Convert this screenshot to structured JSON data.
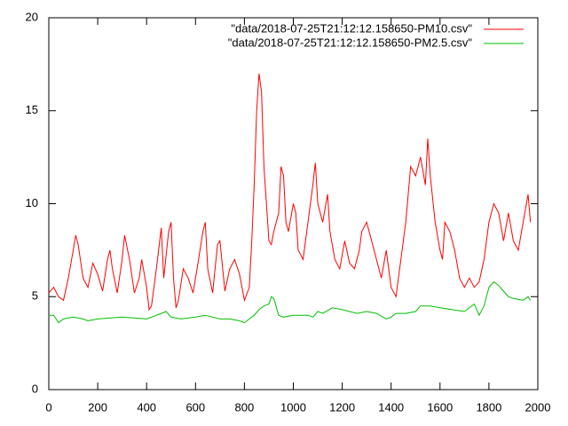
{
  "chart_data": {
    "type": "line",
    "xlim": [
      0,
      2000
    ],
    "xticks": [
      0,
      200,
      400,
      600,
      800,
      1000,
      1200,
      1400,
      1600,
      1800,
      2000
    ],
    "ylim": [
      0,
      20
    ],
    "yticks": [
      0,
      5,
      10,
      15,
      20
    ],
    "grid": false,
    "legend": "top-right",
    "series": [
      {
        "name": "\"data/2018-07-25T21:12:12.158650-PM10.csv\"",
        "color": "#ff0000",
        "x": [
          0,
          20,
          40,
          60,
          80,
          100,
          110,
          120,
          140,
          160,
          180,
          200,
          220,
          240,
          250,
          260,
          280,
          300,
          310,
          330,
          350,
          370,
          380,
          400,
          410,
          420,
          440,
          460,
          470,
          490,
          500,
          510,
          520,
          530,
          550,
          570,
          590,
          610,
          630,
          640,
          650,
          670,
          690,
          700,
          720,
          740,
          760,
          780,
          800,
          820,
          830,
          840,
          850,
          860,
          870,
          880,
          890,
          900,
          910,
          920,
          940,
          950,
          960,
          970,
          980,
          1000,
          1010,
          1020,
          1040,
          1060,
          1080,
          1090,
          1100,
          1120,
          1140,
          1150,
          1170,
          1190,
          1210,
          1230,
          1250,
          1270,
          1280,
          1300,
          1320,
          1340,
          1360,
          1380,
          1400,
          1420,
          1440,
          1460,
          1480,
          1500,
          1520,
          1540,
          1550,
          1560,
          1580,
          1600,
          1610,
          1620,
          1640,
          1660,
          1680,
          1700,
          1720,
          1740,
          1760,
          1780,
          1800,
          1820,
          1840,
          1860,
          1880,
          1900,
          1920,
          1940,
          1960,
          1970
        ],
        "values": [
          5.2,
          5.5,
          5.0,
          4.8,
          6.0,
          7.5,
          8.3,
          7.8,
          6.0,
          5.5,
          6.8,
          6.2,
          5.3,
          7.0,
          7.5,
          6.5,
          5.2,
          7.0,
          8.3,
          7.0,
          5.2,
          6.0,
          7.0,
          5.5,
          4.3,
          4.5,
          6.5,
          8.7,
          6.0,
          8.5,
          9.0,
          6.0,
          4.4,
          4.8,
          6.5,
          6.0,
          5.2,
          6.8,
          8.5,
          9.0,
          6.5,
          5.2,
          7.8,
          8.0,
          5.3,
          6.5,
          7.0,
          6.2,
          4.8,
          5.5,
          8.0,
          11.0,
          15.0,
          17.0,
          16.0,
          12.0,
          10.0,
          8.0,
          7.8,
          8.5,
          9.5,
          12.0,
          11.5,
          9.0,
          8.5,
          10.0,
          9.5,
          7.5,
          7.0,
          9.0,
          11.0,
          12.2,
          10.0,
          9.0,
          10.5,
          8.5,
          7.0,
          6.5,
          8.0,
          6.8,
          6.5,
          7.5,
          8.5,
          9.0,
          8.0,
          7.0,
          6.0,
          7.5,
          5.5,
          5.0,
          7.0,
          9.0,
          12.0,
          11.5,
          12.5,
          11.0,
          13.5,
          11.5,
          9.0,
          7.5,
          7.0,
          9.0,
          8.5,
          7.5,
          6.0,
          5.5,
          6.0,
          5.5,
          5.8,
          7.0,
          9.0,
          10.0,
          9.5,
          8.0,
          9.5,
          8.0,
          7.5,
          9.0,
          10.5,
          9.0
        ]
      },
      {
        "name": "\"data/2018-07-25T21:12:12.158650-PM2.5.csv\"",
        "color": "#00c000",
        "x": [
          0,
          20,
          40,
          60,
          100,
          140,
          160,
          200,
          300,
          400,
          420,
          460,
          480,
          500,
          540,
          600,
          640,
          700,
          740,
          780,
          800,
          820,
          840,
          860,
          880,
          900,
          910,
          920,
          940,
          960,
          1000,
          1060,
          1080,
          1100,
          1120,
          1160,
          1200,
          1260,
          1300,
          1340,
          1380,
          1400,
          1420,
          1460,
          1500,
          1520,
          1560,
          1600,
          1650,
          1700,
          1740,
          1760,
          1780,
          1800,
          1820,
          1840,
          1860,
          1880,
          1900,
          1940,
          1960,
          1970
        ],
        "values": [
          4.0,
          4.0,
          3.6,
          3.8,
          3.9,
          3.8,
          3.7,
          3.8,
          3.9,
          3.8,
          3.9,
          4.1,
          4.2,
          3.9,
          3.8,
          3.9,
          4.0,
          3.8,
          3.8,
          3.7,
          3.6,
          3.8,
          4.0,
          4.3,
          4.5,
          4.6,
          5.0,
          4.9,
          4.0,
          3.9,
          4.0,
          4.0,
          3.9,
          4.2,
          4.1,
          4.4,
          4.3,
          4.1,
          4.2,
          4.1,
          3.8,
          3.9,
          4.1,
          4.1,
          4.2,
          4.5,
          4.5,
          4.4,
          4.3,
          4.2,
          4.6,
          4.0,
          4.5,
          5.5,
          5.8,
          5.6,
          5.3,
          5.0,
          4.9,
          4.8,
          5.0,
          4.8
        ]
      }
    ]
  }
}
